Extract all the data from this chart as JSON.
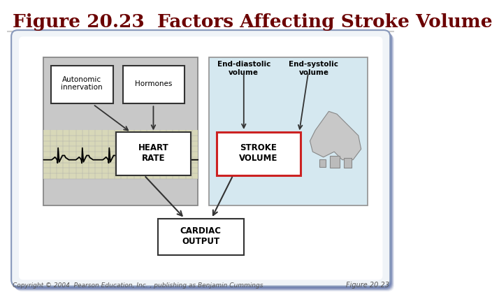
{
  "title": "Figure 20.23  Factors Affecting Stroke Volume",
  "title_color": "#6B0000",
  "title_fontsize": 19,
  "copyright_text": "Copyright © 2004  Pearson Education, Inc. , publishing as Benjamin Cummings",
  "figure_label": "Figure 20.23",
  "bg_color": "#FFFFFF",
  "outer_box_bg": "#FFFFFF",
  "outer_shadow_color": "#8899BB",
  "left_panel_bg": "#C8C8C8",
  "right_panel_bg": "#D5E8F0",
  "ecg_bg": "#D8D8B8",
  "ecg_grid_color": "#AAAAAA",
  "stroke_box_color": "#CC2222",
  "separator_color": "#CCCCCC",
  "arrow_color": "#333333",
  "box_edge_color": "#333333"
}
